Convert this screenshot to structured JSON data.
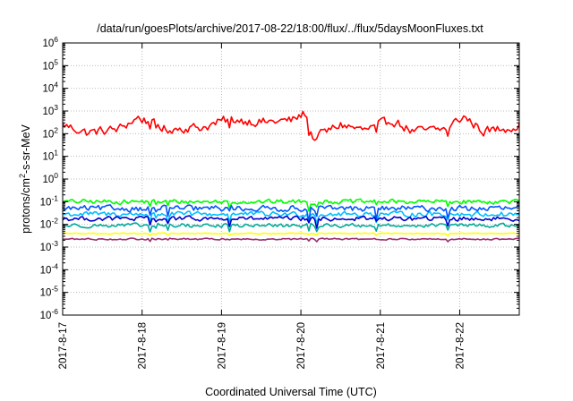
{
  "chart_data": {
    "type": "line",
    "title": "/data/run/goesPlots/archive/2017-08-22/18:00/flux/../flux/5daysMoonFluxes.txt",
    "xlabel": "Coordinated Universal Time (UTC)",
    "ylabel": {
      "base": "protons/cm",
      "sup": "2",
      "rest": "-s-sr-MeV"
    },
    "yscale": "log",
    "ylim": [
      -6,
      6
    ],
    "y_tick_exponents": [
      6,
      5,
      4,
      3,
      2,
      1,
      0,
      -1,
      -2,
      -3,
      -4,
      -5,
      -6
    ],
    "y_tick_base": "10",
    "x_tick_labels": [
      "2017-8-17",
      "2017-8-18",
      "2017-8-19",
      "2017-8-20",
      "2017-8-21",
      "2017-8-22"
    ],
    "xlim_days": [
      "2017-08-17T00:00",
      "2017-08-22T18:00"
    ],
    "grid": true,
    "series": [
      {
        "color": "#ff0000",
        "log_base": 2.2,
        "amp": 0.28,
        "spike_down": 0.5,
        "anchors": [
          [
            0.0,
            2.4
          ],
          [
            0.3,
            2.05
          ],
          [
            0.7,
            2.2
          ],
          [
            0.95,
            2.7
          ],
          [
            1.3,
            2.2
          ],
          [
            1.8,
            2.3
          ],
          [
            2.1,
            2.65
          ],
          [
            2.5,
            2.5
          ],
          [
            2.9,
            2.6
          ],
          [
            3.05,
            2.9
          ],
          [
            3.15,
            1.8
          ],
          [
            3.5,
            2.4
          ],
          [
            3.8,
            2.15
          ],
          [
            4.15,
            2.6
          ],
          [
            4.4,
            2.1
          ],
          [
            4.8,
            2.2
          ],
          [
            5.05,
            2.75
          ],
          [
            5.3,
            2.1
          ],
          [
            5.75,
            2.35
          ]
        ]
      },
      {
        "color": "#00ff00",
        "log_base": -1.0,
        "amp": 0.14,
        "spike_down": 0.35,
        "anchors": []
      },
      {
        "color": "#00bfff",
        "log_base": -1.55,
        "amp": 0.16,
        "spike_down": 0.45,
        "anchors": []
      },
      {
        "color": "#0055ff",
        "log_base": -1.3,
        "amp": 0.18,
        "spike_down": 0.45,
        "anchors": []
      },
      {
        "color": "#0000cc",
        "log_base": -1.75,
        "amp": 0.14,
        "spike_down": 0.4,
        "anchors": []
      },
      {
        "color": "#00aa99",
        "log_base": -2.05,
        "amp": 0.12,
        "spike_down": 0.35,
        "anchors": []
      },
      {
        "color": "#ffff00",
        "log_base": -2.4,
        "amp": 0.03,
        "spike_down": 0.1,
        "anchors": []
      },
      {
        "color": "#9b2d6b",
        "log_base": -2.65,
        "amp": 0.05,
        "spike_down": 0.12,
        "anchors": []
      }
    ]
  }
}
